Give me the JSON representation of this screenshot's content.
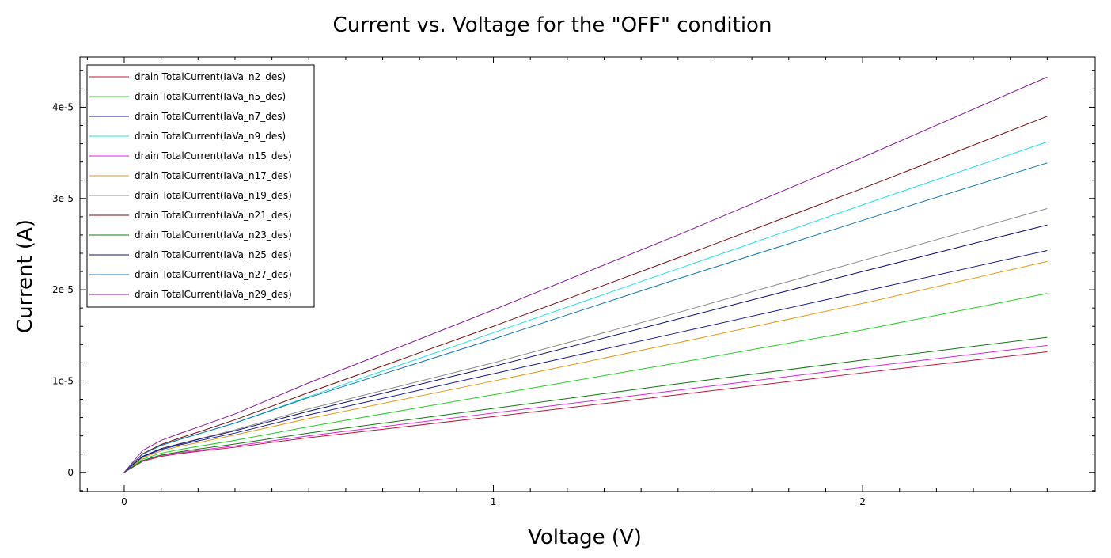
{
  "chart_data": {
    "type": "line",
    "title": "Current vs. Voltage for the \"OFF\" condition",
    "xlabel": "Voltage (V)",
    "ylabel": "Current (A)",
    "xlim": [
      -0.12,
      2.63
    ],
    "ylim": [
      -2.1e-06,
      4.55e-05
    ],
    "x_ticks": [
      0,
      1,
      2
    ],
    "x_tick_labels": [
      "0",
      "1",
      "2"
    ],
    "y_ticks": [
      0,
      1e-05,
      2e-05,
      3e-05,
      4e-05
    ],
    "y_tick_labels": [
      "0",
      "1e-5",
      "2e-5",
      "3e-5",
      "4e-5"
    ],
    "grid": false,
    "legend_position": "top-left",
    "x": [
      0,
      0.05,
      0.1,
      0.15,
      0.2,
      0.3,
      0.5,
      1.0,
      1.5,
      2.0,
      2.5
    ],
    "series": [
      {
        "name": "drain TotalCurrent(IaVa_n2_des)",
        "color": "#c0143c",
        "values": [
          0,
          1.2e-06,
          1.75e-06,
          2.05e-06,
          2.3e-06,
          2.75e-06,
          3.8e-06,
          6.1e-06,
          8.5e-06,
          1.09e-05,
          1.32e-05
        ]
      },
      {
        "name": "drain TotalCurrent(IaVa_n5_des)",
        "color": "#22d022",
        "values": [
          0,
          1.45e-06,
          2.1e-06,
          2.5e-06,
          2.85e-06,
          3.5e-06,
          5e-06,
          8.5e-06,
          1.2e-05,
          1.56e-05,
          1.96e-05
        ]
      },
      {
        "name": "drain TotalCurrent(IaVa_n7_des)",
        "color": "#1a1a9e",
        "values": [
          0,
          1.7e-06,
          2.5e-06,
          3e-06,
          3.45e-06,
          4.3e-06,
          6.3e-06,
          1.08e-05,
          1.53e-05,
          1.98e-05,
          2.43e-05
        ]
      },
      {
        "name": "drain TotalCurrent(IaVa_n9_des)",
        "color": "#22e0e0",
        "values": [
          0,
          2e-06,
          2.95e-06,
          3.6e-06,
          4.2e-06,
          5.4e-06,
          8.3e-06,
          1.53e-05,
          2.23e-05,
          2.93e-05,
          3.62e-05
        ]
      },
      {
        "name": "drain TotalCurrent(IaVa_n15_des)",
        "color": "#dd22dd",
        "values": [
          0,
          1.25e-06,
          1.85e-06,
          2.15e-06,
          2.4e-06,
          2.9e-06,
          4e-06,
          6.5e-06,
          9e-06,
          1.15e-05,
          1.39e-05
        ]
      },
      {
        "name": "drain TotalCurrent(IaVa_n17_des)",
        "color": "#e89a14",
        "values": [
          0,
          1.6e-06,
          2.35e-06,
          2.85e-06,
          3.25e-06,
          4.1e-06,
          5.9e-06,
          1e-05,
          1.42e-05,
          1.85e-05,
          2.31e-05
        ]
      },
      {
        "name": "drain TotalCurrent(IaVa_n19_des)",
        "color": "#8c8c8c",
        "values": [
          0,
          1.75e-06,
          2.6e-06,
          3.15e-06,
          3.65e-06,
          4.65e-06,
          6.95e-06,
          1.2e-05,
          1.75e-05,
          2.32e-05,
          2.89e-05
        ]
      },
      {
        "name": "drain TotalCurrent(IaVa_n21_des)",
        "color": "#7a0e0e",
        "values": [
          0,
          2.05e-06,
          3.05e-06,
          3.75e-06,
          4.4e-06,
          5.75e-06,
          8.75e-06,
          1.6e-05,
          2.35e-05,
          3.11e-05,
          3.9e-05
        ]
      },
      {
        "name": "drain TotalCurrent(IaVa_n23_des)",
        "color": "#0f7a0f",
        "values": [
          0,
          1.3e-06,
          1.9e-06,
          2.25e-06,
          2.55e-06,
          3.1e-06,
          4.3e-06,
          7e-06,
          9.7e-06,
          1.23e-05,
          1.48e-05
        ]
      },
      {
        "name": "drain TotalCurrent(IaVa_n25_des)",
        "color": "#10107a",
        "values": [
          0,
          1.75e-06,
          2.6e-06,
          3.1e-06,
          3.6e-06,
          4.55e-06,
          6.7e-06,
          1.16e-05,
          1.68e-05,
          2.2e-05,
          2.71e-05
        ]
      },
      {
        "name": "drain TotalCurrent(IaVa_n27_des)",
        "color": "#1478b4",
        "values": [
          0,
          2e-06,
          2.95e-06,
          3.6e-06,
          4.2e-06,
          5.4e-06,
          8.2e-06,
          1.46e-05,
          2.12e-05,
          2.76e-05,
          3.39e-05
        ]
      },
      {
        "name": "drain TotalCurrent(IaVa_n29_des)",
        "color": "#8a1a9e",
        "values": [
          0,
          2.4e-06,
          3.5e-06,
          4.25e-06,
          4.95e-06,
          6.4e-06,
          9.8e-06,
          1.78e-05,
          2.6e-05,
          3.45e-05,
          4.33e-05
        ]
      }
    ]
  }
}
